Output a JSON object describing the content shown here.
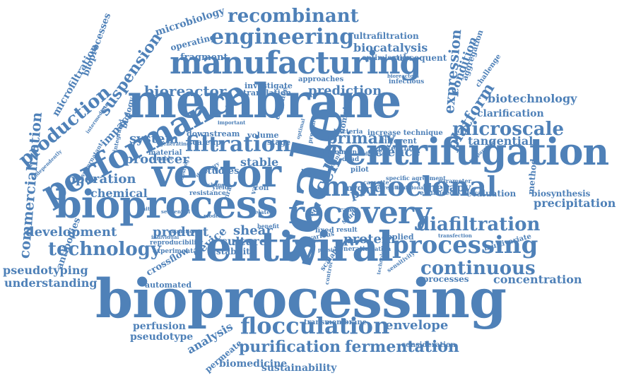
{
  "color": "#4f81b8",
  "words": [
    "membrane",
    "bioprocessing",
    "lentiviral",
    "scale",
    "centrifugation",
    "bioprocess",
    "vector",
    "manufacturing",
    "performance",
    "recovery",
    "monoclonal",
    "engineering",
    "filtration",
    "processing",
    "flocculation",
    "continuous",
    "diafiltration",
    "recombinant",
    "technology",
    "microscale",
    "purification",
    "fermentation",
    "production",
    "commercialization",
    "primary",
    "microfiltration",
    "suspension",
    "understanding",
    "pseudotyping",
    "development",
    "envelope",
    "platform",
    "precipitation",
    "concentration",
    "expression",
    "bioreactor",
    "prediction",
    "clarification",
    "biotechnology",
    "tangential",
    "cell",
    "protein",
    "producer",
    "operation",
    "chemical",
    "system",
    "shear",
    "product",
    "culture",
    "device",
    "analysis",
    "perfusion",
    "pseudotype",
    "biomedicine",
    "sustainability",
    "permeate",
    "stable",
    "studies",
    "science",
    "processes",
    "applied",
    "therapy",
    "biocatalysis",
    "ultrafiltration",
    "microbiology",
    "fragment",
    "condition",
    "method",
    "biosynthesis",
    "evaluation",
    "antibodies",
    "crossflow",
    "automated",
    "stability",
    "impact",
    "bioprocesses",
    "subsequent",
    "optimisation",
    "translation",
    "investigate",
    "approaches",
    "operating",
    "aggregation",
    "challenge",
    "downstream",
    "scaleup",
    "volume",
    "stage",
    "enhance",
    "material",
    "biology",
    "consideration",
    "transmembrane",
    "reproducibility",
    "experimental",
    "multivariate",
    "increase technique",
    "different",
    "potential",
    "domain",
    "bacteria",
    "proc",
    "mvda",
    "infectious",
    "bioreactors",
    "enable",
    "integrated",
    "generation",
    "various",
    "creation",
    "fixed",
    "result",
    "line",
    "yield",
    "coli",
    "related",
    "benefit",
    "rate",
    "study",
    "feed",
    "cassette",
    "specific agreement",
    "enhanced",
    "transfection",
    "scalable",
    "sensitivity",
    "technologies",
    "important",
    "generating",
    "intermediate",
    "supernatant",
    "independently",
    "resistance",
    "value",
    "traditional",
    "correlation",
    "preparative",
    "parameter",
    "physical",
    "unit",
    "viral",
    "dead",
    "pilot",
    "common",
    "industrial",
    "optimal",
    "pressure",
    "extraction",
    "sequential",
    "individual",
    "boosting",
    "discovery",
    "control",
    "affinity",
    "change",
    "model"
  ]
}
